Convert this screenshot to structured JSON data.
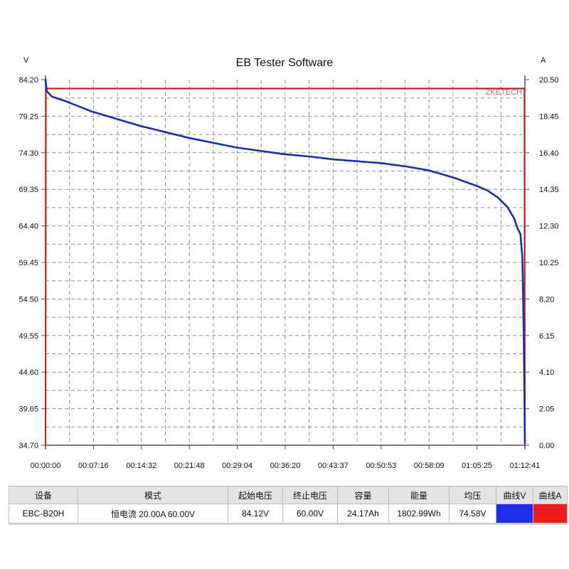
{
  "window_title": "EB Tester Software",
  "brand": "ZKETECH",
  "chart_data": {
    "type": "line",
    "title": "EB Tester Software",
    "left_axis_unit": "V",
    "right_axis_unit": "A",
    "x_ticks": [
      "00:00:00",
      "00:07:16",
      "00:14:32",
      "00:21:48",
      "00:29:04",
      "00:36:20",
      "00:43:37",
      "00:50:53",
      "00:58:09",
      "01:05:25",
      "01:12:41"
    ],
    "y_left_ticks": [
      "34.70",
      "39.65",
      "44.60",
      "49.55",
      "54.50",
      "59.45",
      "64.40",
      "69.35",
      "74.30",
      "79.25",
      "84.20"
    ],
    "y_right_ticks": [
      "0.00",
      "2.05",
      "4.10",
      "6.15",
      "8.20",
      "10.25",
      "12.30",
      "14.35",
      "16.40",
      "18.45",
      "20.50"
    ],
    "y_left_range": [
      34.7,
      84.2
    ],
    "y_right_range": [
      0.0,
      20.5
    ],
    "x_range_minutes": [
      0,
      72.68
    ],
    "grid": true,
    "series": [
      {
        "name": "曲线V",
        "axis": "left",
        "color": "#1f2ea6",
        "x_minutes": [
          0,
          0.2,
          1,
          3,
          7,
          14.5,
          21.8,
          29,
          36.3,
          40,
          43.6,
          50.9,
          55,
          58.2,
          62,
          65.4,
          67,
          68.5,
          70,
          71,
          71.6,
          72,
          72.3,
          72.5,
          72.6,
          72.65,
          72.68
        ],
        "values": [
          84.2,
          82.6,
          81.9,
          81.3,
          79.9,
          77.9,
          76.3,
          75.0,
          74.1,
          73.8,
          73.4,
          72.9,
          72.4,
          71.9,
          70.9,
          69.8,
          69.2,
          68.3,
          67.0,
          65.5,
          64.0,
          63.3,
          60.0,
          50.0,
          42.0,
          37.0,
          35.0
        ]
      },
      {
        "name": "曲线A",
        "axis": "right",
        "color": "#b82a2a",
        "x_minutes": [
          0,
          0.05,
          72.6,
          72.68
        ],
        "values": [
          0,
          20.0,
          20.0,
          0
        ]
      }
    ]
  },
  "table": {
    "headers": [
      "设备",
      "模式",
      "起始电压",
      "终止电压",
      "容量",
      "能量",
      "均压",
      "曲线V",
      "曲线A"
    ],
    "row": [
      "EBC-B20H",
      "恒电流  20.00A  60.00V",
      "84.12V",
      "60.00V",
      "24.17Ah",
      "1802.99Wh",
      "74.58V",
      "",
      ""
    ],
    "swatch_colors": {
      "curve_v": "#1f2ee8",
      "curve_a": "#ee1c1c"
    }
  }
}
